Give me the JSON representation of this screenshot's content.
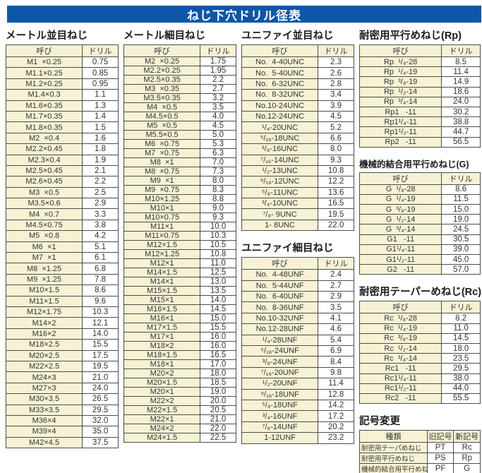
{
  "page": {
    "title": "ねじ下穴ドリル径表"
  },
  "colors": {
    "banner": "#0d57a7",
    "banner_text": "#ffffff",
    "cell_cream": "#f7f2d4",
    "border": "#4d4d4d",
    "cell_text": "#333333",
    "title_text": "#1b1b1b"
  },
  "tables": [
    {
      "id": "metric-coarse",
      "title": "メートル並目ねじ",
      "headers": [
        "呼び",
        "ドリル"
      ],
      "rows": [
        [
          "M1  ×0.25",
          "0.75"
        ],
        [
          "M1.1×0.25",
          "0.85"
        ],
        [
          "M1.2×0.25",
          "0.95"
        ],
        [
          "M1.4×0.3",
          "1.1"
        ],
        [
          "M1.6×0.35",
          "1.3"
        ],
        [
          "M1.7×0.35",
          "1.4"
        ],
        [
          "M1.8×0.35",
          "1.5"
        ],
        [
          "M2  ×0.4",
          "1.6"
        ],
        [
          "M2.2×0.45",
          "1.8"
        ],
        [
          "M2.3×0.4",
          "1.9"
        ],
        [
          "M2.5×0.45",
          "2.1"
        ],
        [
          "M2.6×0.45",
          "2.2"
        ],
        [
          "M3  ×0.5",
          "2.5"
        ],
        [
          "M3.5×0.6",
          "2.9"
        ],
        [
          "M4  ×0.7",
          "3.3"
        ],
        [
          "M4.5×0.75",
          "3.8"
        ],
        [
          "M5  ×0.8",
          "4.2"
        ],
        [
          "M6  ×1",
          "5.1"
        ],
        [
          "M7  ×1",
          "6.1"
        ],
        [
          "M8  ×1.25",
          "6.8"
        ],
        [
          "M9  ×1.25",
          "7.8"
        ],
        [
          "M10×1.5",
          "8.6"
        ],
        [
          "M11×1.5",
          "9.6"
        ],
        [
          "M12×1.75",
          "10.3"
        ],
        [
          "M14×2",
          "12.1"
        ],
        [
          "M16×2",
          "14.0"
        ],
        [
          "M18×2.5",
          "15.5"
        ],
        [
          "M20×2.5",
          "17.5"
        ],
        [
          "M22×2.5",
          "19.5"
        ],
        [
          "M24×3",
          "21.0"
        ],
        [
          "M27×3",
          "24.0"
        ],
        [
          "M30×3.5",
          "26.5"
        ],
        [
          "M33×3.5",
          "29.5"
        ],
        [
          "M36×4",
          "32.0"
        ],
        [
          "M39×4",
          "35.0"
        ],
        [
          "M42×4.5",
          "37.5"
        ]
      ]
    },
    {
      "id": "metric-fine",
      "title": "メートル細目ねじ",
      "headers": [
        "呼び",
        "ドリル"
      ],
      "rows": [
        [
          "M2  ×0.25",
          "1.75"
        ],
        [
          "M2.2×0.25",
          "1.95"
        ],
        [
          "M2.5×0.35",
          "2.2"
        ],
        [
          "M3  ×0.35",
          "2.7"
        ],
        [
          "M3.5×0.35",
          "3.2"
        ],
        [
          "M4  ×0.5",
          "3.5"
        ],
        [
          "M4.5×0.5",
          "4.0"
        ],
        [
          "M5  ×0.5",
          "4.5"
        ],
        [
          "M5.5×0.5",
          "5.0"
        ],
        [
          "M6  ×0.75",
          "5.3"
        ],
        [
          "M7  ×0.75",
          "6.3"
        ],
        [
          "M8  ×1",
          "7.0"
        ],
        [
          "M8  ×0.75",
          "7.3"
        ],
        [
          "M9  ×1",
          "8.0"
        ],
        [
          "M9  ×0.75",
          "8.3"
        ],
        [
          "M10×1.25",
          "8.8"
        ],
        [
          "M10×1",
          "9.0"
        ],
        [
          "M10×0.75",
          "9.3"
        ],
        [
          "M11×1",
          "10.0"
        ],
        [
          "M11×0.75",
          "10.3"
        ],
        [
          "M12×1.5",
          "10.5"
        ],
        [
          "M12×1.25",
          "10.8"
        ],
        [
          "M12×1",
          "11.0"
        ],
        [
          "M14×1.5",
          "12.5"
        ],
        [
          "M14×1",
          "13.0"
        ],
        [
          "M15×1.5",
          "13.5"
        ],
        [
          "M15×1",
          "14.0"
        ],
        [
          "M16×1.5",
          "14.5"
        ],
        [
          "M16×1",
          "15.0"
        ],
        [
          "M17×1.5",
          "15.5"
        ],
        [
          "M17×1",
          "16.0"
        ],
        [
          "M18×2",
          "16.0"
        ],
        [
          "M18×1.5",
          "16.5"
        ],
        [
          "M18×1",
          "17.0"
        ],
        [
          "M20×2",
          "18.0"
        ],
        [
          "M20×1.5",
          "18.5"
        ],
        [
          "M20×1",
          "19.0"
        ],
        [
          "M22×2",
          "20.0"
        ],
        [
          "M22×1.5",
          "20.5"
        ],
        [
          "M22×1",
          "21.0"
        ],
        [
          "M24×2",
          "22.0"
        ],
        [
          "M24×1.5",
          "22.5"
        ]
      ]
    },
    {
      "id": "unified-coarse",
      "title": "ユニファイ並目ねじ",
      "headers": [
        "呼び",
        "ドリル"
      ],
      "rows": [
        [
          "No.  4-40UNC",
          "2.3"
        ],
        [
          "No.  5-40UNC",
          "2.6"
        ],
        [
          "No.  6-32UNC",
          "2.8"
        ],
        [
          "No.  8-32UNC",
          "3.4"
        ],
        [
          "No.10-24UNC",
          "3.9"
        ],
        [
          "No.12-24UNC",
          "4.5"
        ],
        [
          "¹/₄-20UNC",
          "5.2"
        ],
        [
          "⁵/₁₆-18UNC",
          "6.6"
        ],
        [
          "³/₈-16UNC",
          "8.0"
        ],
        [
          "⁷/₁₆-14UNC",
          "9.3"
        ],
        [
          "¹/₂-13UNC",
          "10.8"
        ],
        [
          "⁹/₁₆-12UNC",
          "12.2"
        ],
        [
          "⁵/₈-11UNC",
          "13.6"
        ],
        [
          "³/₄-10UNC",
          "16.5"
        ],
        [
          "⁷/₈- 9UNC",
          "19.5"
        ],
        [
          "1- 8UNC",
          "22.0"
        ]
      ]
    },
    {
      "id": "unified-fine",
      "title": "ユニファイ細目ねじ",
      "headers": [
        "呼び",
        "ドリル"
      ],
      "rows": [
        [
          "No.  4-48UNF",
          "2.4"
        ],
        [
          "No.  5-44UNF",
          "2.7"
        ],
        [
          "No.  6-40UNF",
          "2.9"
        ],
        [
          "No.  8-36UNF",
          "3.5"
        ],
        [
          "No.10-32UNF",
          "4.1"
        ],
        [
          "No.12-28UNF",
          "4.6"
        ],
        [
          "¹/₄-28UNF",
          "5.4"
        ],
        [
          "⁵/₁₆-24UNF",
          "6.9"
        ],
        [
          "³/₈-24UNF",
          "8.4"
        ],
        [
          "⁷/₁₆-20UNF",
          "9.8"
        ],
        [
          "¹/₂-20UNF",
          "11.4"
        ],
        [
          "⁹/₁₆-18UNF",
          "12.8"
        ],
        [
          "⁵/₈-18UNF",
          "14.2"
        ],
        [
          "³/₄-16UNF",
          "17.2"
        ],
        [
          "⁷/₈-14UNF",
          "20.2"
        ],
        [
          "1-12UNF",
          "23.2"
        ]
      ]
    },
    {
      "id": "rp",
      "title": "耐密用平行めねじ(Rp)",
      "headers": [
        "呼び",
        "ドリル"
      ],
      "rows": [
        [
          "Rp  ¹/₈-28",
          "8.5"
        ],
        [
          "Rp  ¹/₄-19",
          "11.4"
        ],
        [
          "Rp  ³/₈-19",
          "14.9"
        ],
        [
          "Rp  ¹/₂-14",
          "18.6"
        ],
        [
          "Rp  ³/₄-14",
          "24.0"
        ],
        [
          "Rp1   -11",
          "30.2"
        ],
        [
          "Rp1¹/₄-11",
          "38.8"
        ],
        [
          "Rp1¹/₂-11",
          "44.7"
        ],
        [
          "Rp2   -11",
          "56.5"
        ]
      ]
    },
    {
      "id": "g",
      "title": "機械的結合用平行めねじ(G)",
      "headers": [
        "呼び",
        "ドリル"
      ],
      "rows": [
        [
          "G  ¹/₈-28",
          "8.6"
        ],
        [
          "G  ¹/₄-19",
          "11.5"
        ],
        [
          "G  ³/₈-19",
          "15.0"
        ],
        [
          "G  ¹/₂-14",
          "19.0"
        ],
        [
          "G  ³/₄-14",
          "24.5"
        ],
        [
          "G1   -11",
          "30.5"
        ],
        [
          "G1¹/₄-11",
          "39.0"
        ],
        [
          "G1¹/₂-11",
          "45.0"
        ],
        [
          "G2   -11",
          "57.0"
        ]
      ]
    },
    {
      "id": "rc",
      "title": "耐密用テーパーめねじ(Rc)",
      "headers": [
        "呼び",
        "ドリル"
      ],
      "rows": [
        [
          "Rc  ¹/₈-28",
          "8.2"
        ],
        [
          "Rc  ¹/₄-19",
          "11.0"
        ],
        [
          "Rc  ³/₈-19",
          "14.5"
        ],
        [
          "Rc  ¹/₂-14",
          "18.0"
        ],
        [
          "Rc  ³/₄-14",
          "23.5"
        ],
        [
          "Rc1   -11",
          "29.5"
        ],
        [
          "Rc1¹/₄-11",
          "38.0"
        ],
        [
          "Rc1¹/₂-11",
          "44.0"
        ],
        [
          "Rc2   -11",
          "55.5"
        ]
      ]
    },
    {
      "id": "symbol-change",
      "title": "記号変更",
      "headers": [
        "種類",
        "旧記号",
        "新記号"
      ],
      "rows": [
        [
          "耐密用テーパめねじ",
          "PT",
          "Rc"
        ],
        [
          "耐密用平行めねじ",
          "PS",
          "Rp"
        ],
        [
          "機械的結合用平行めねじ",
          "PF",
          "G"
        ]
      ]
    }
  ]
}
